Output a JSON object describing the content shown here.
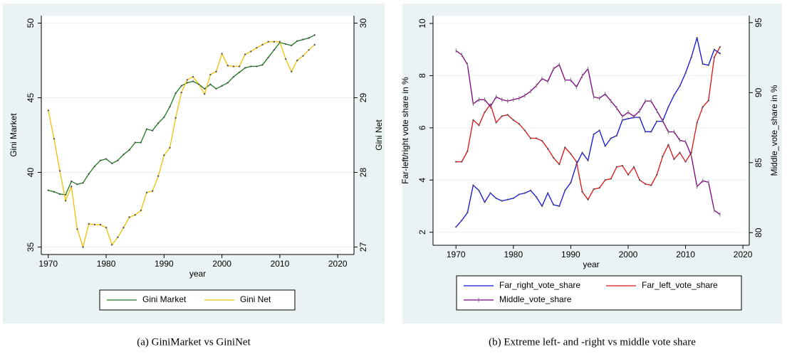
{
  "chart_data": [
    {
      "type": "line",
      "caption": "(a) GiniMarket vs GiniNet",
      "xlabel": "year",
      "ylabel": "Gini Market",
      "y2label": "Gini Net",
      "x": [
        1970,
        1971,
        1972,
        1973,
        1974,
        1975,
        1976,
        1977,
        1978,
        1979,
        1980,
        1981,
        1982,
        1983,
        1984,
        1985,
        1986,
        1987,
        1988,
        1989,
        1990,
        1991,
        1992,
        1993,
        1994,
        1995,
        1996,
        1997,
        1998,
        1999,
        2000,
        2001,
        2002,
        2003,
        2004,
        2005,
        2006,
        2007,
        2008,
        2009,
        2010,
        2011,
        2012,
        2013,
        2014,
        2015,
        2016
      ],
      "xlim": [
        1968.8,
        2022.8
      ],
      "xticks": [
        1970,
        1980,
        1990,
        2000,
        2010,
        2020
      ],
      "ylim": [
        34.5,
        50.5
      ],
      "yticks": [
        35,
        40,
        45,
        50
      ],
      "y2lim": [
        26.9,
        30.1
      ],
      "y2ticks": [
        27,
        28,
        29,
        30
      ],
      "grid": true,
      "series": [
        {
          "name": "Gini Market",
          "color": "#1a7a1a",
          "marker": "dot",
          "values": [
            38.8,
            38.7,
            38.55,
            38.5,
            39.4,
            39.2,
            39.3,
            39.9,
            40.4,
            40.8,
            40.9,
            40.6,
            40.8,
            41.2,
            41.5,
            42.0,
            42.0,
            42.9,
            42.8,
            43.3,
            43.7,
            44.4,
            45.3,
            45.8,
            46.0,
            46.1,
            45.9,
            45.6,
            45.9,
            45.6,
            45.8,
            46.0,
            46.4,
            46.7,
            47.0,
            47.1,
            47.1,
            47.2,
            47.7,
            48.2,
            48.7,
            48.6,
            48.5,
            48.8,
            48.9,
            49.0,
            49.2
          ]
        },
        {
          "name": "Gini Net",
          "color": "#f0c000",
          "marker": "dot",
          "axis": "y2",
          "values": [
            28.83,
            28.45,
            28.02,
            27.62,
            27.81,
            27.24,
            27.0,
            27.31,
            27.3,
            27.3,
            27.26,
            27.03,
            27.13,
            27.26,
            27.4,
            27.43,
            27.49,
            27.73,
            27.75,
            27.95,
            28.23,
            28.33,
            28.73,
            29.07,
            29.24,
            29.28,
            29.18,
            29.05,
            29.31,
            29.35,
            29.59,
            29.43,
            29.42,
            29.42,
            29.58,
            29.62,
            29.67,
            29.71,
            29.75,
            29.75,
            29.75,
            29.52,
            29.35,
            29.5,
            29.56,
            29.64,
            29.71
          ]
        }
      ]
    },
    {
      "type": "line",
      "caption": "(b) Extreme left- and -right vs middle vote share",
      "xlabel": "year",
      "ylabel": "Far-left/right vote share in %",
      "y2label": "Middle_vote_share in %",
      "x": [
        1970,
        1971,
        1972,
        1973,
        1974,
        1975,
        1976,
        1977,
        1978,
        1979,
        1980,
        1981,
        1982,
        1983,
        1984,
        1985,
        1986,
        1987,
        1988,
        1989,
        1990,
        1991,
        1992,
        1993,
        1994,
        1995,
        1996,
        1997,
        1998,
        1999,
        2000,
        2001,
        2002,
        2003,
        2004,
        2005,
        2006,
        2007,
        2008,
        2009,
        2010,
        2011,
        2012,
        2013,
        2014,
        2015,
        2016
      ],
      "xlim": [
        1966.0,
        2021.1
      ],
      "xticks": [
        1970,
        1980,
        1990,
        2000,
        2010,
        2020
      ],
      "ylim": [
        1.5,
        10.3
      ],
      "yticks": [
        2,
        4,
        6,
        8,
        10
      ],
      "y2lim": [
        79.1,
        95.5
      ],
      "y2ticks": [
        80,
        85,
        90,
        95
      ],
      "grid": true,
      "series": [
        {
          "name": "Far_right_vote_share",
          "color": "#1010e0",
          "marker": "dot",
          "values": [
            2.2,
            2.45,
            2.75,
            3.8,
            3.6,
            3.15,
            3.5,
            3.3,
            3.2,
            3.25,
            3.3,
            3.45,
            3.5,
            3.6,
            3.35,
            3.0,
            3.5,
            3.05,
            3.0,
            3.6,
            3.9,
            4.6,
            5.05,
            4.75,
            5.75,
            5.9,
            5.3,
            5.6,
            5.7,
            6.3,
            6.35,
            6.4,
            6.4,
            5.85,
            5.85,
            6.25,
            6.25,
            6.8,
            7.25,
            7.6,
            8.1,
            8.7,
            9.45,
            8.45,
            8.4,
            9.0,
            8.85
          ]
        },
        {
          "name": "Far_left_vote_share",
          "color": "#e01010",
          "marker": "dot",
          "values": [
            4.7,
            4.7,
            5.1,
            6.3,
            6.1,
            6.6,
            6.9,
            6.2,
            6.45,
            6.5,
            6.3,
            6.15,
            5.9,
            5.6,
            5.6,
            5.5,
            5.2,
            4.85,
            4.6,
            5.25,
            5.0,
            4.7,
            3.55,
            3.25,
            3.65,
            3.7,
            4.0,
            4.05,
            4.5,
            4.55,
            4.2,
            4.5,
            4.0,
            3.85,
            3.8,
            4.2,
            4.9,
            5.35,
            4.8,
            5.05,
            4.7,
            5.05,
            6.2,
            6.8,
            7.05,
            8.7,
            9.1
          ]
        },
        {
          "name": "Middle_vote_share",
          "color": "#800080",
          "marker": "tick",
          "axis": "y2",
          "values": [
            93.0,
            92.7,
            92.0,
            89.2,
            89.5,
            89.5,
            89.0,
            89.7,
            89.5,
            89.4,
            89.5,
            89.6,
            89.8,
            90.1,
            90.5,
            91.0,
            90.8,
            91.7,
            92.0,
            90.9,
            90.9,
            90.4,
            91.2,
            91.7,
            89.7,
            89.6,
            89.9,
            89.4,
            88.9,
            88.3,
            88.6,
            88.3,
            88.7,
            89.4,
            89.4,
            88.7,
            88.0,
            87.2,
            87.2,
            86.6,
            86.5,
            85.5,
            83.3,
            83.7,
            83.6,
            81.6,
            81.3
          ]
        }
      ]
    }
  ]
}
